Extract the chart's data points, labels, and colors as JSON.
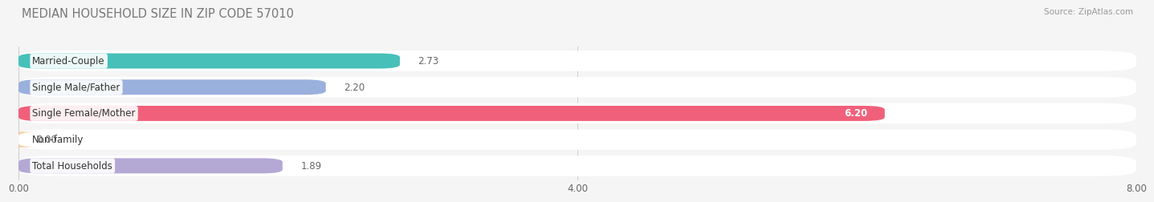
{
  "title": "MEDIAN HOUSEHOLD SIZE IN ZIP CODE 57010",
  "source": "Source: ZipAtlas.com",
  "categories": [
    "Married-Couple",
    "Single Male/Father",
    "Single Female/Mother",
    "Non-family",
    "Total Households"
  ],
  "values": [
    2.73,
    2.2,
    6.2,
    0.0,
    1.89
  ],
  "bar_colors": [
    "#46c0b8",
    "#9ab0dd",
    "#f0607a",
    "#f8c898",
    "#b4a8d4"
  ],
  "xlim": [
    0,
    8.0
  ],
  "xticks": [
    0.0,
    4.0,
    8.0
  ],
  "xtick_labels": [
    "0.00",
    "4.00",
    "8.00"
  ],
  "background_color": "#f5f5f5",
  "title_fontsize": 10.5,
  "label_fontsize": 8.5,
  "value_fontsize": 8.5,
  "bar_height": 0.58,
  "row_bg_color": "#ffffff",
  "grid_color": "#cccccc"
}
